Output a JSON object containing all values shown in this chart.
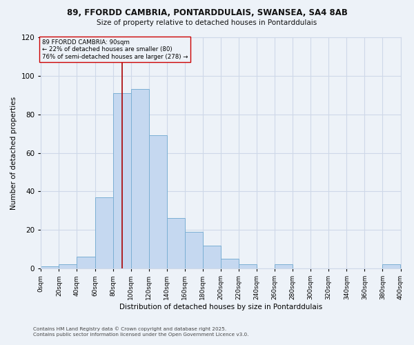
{
  "title_line1": "89, FFORDD CAMBRIA, PONTARDDULAIS, SWANSEA, SA4 8AB",
  "title_line2": "Size of property relative to detached houses in Pontarddulais",
  "xlabel": "Distribution of detached houses by size in Pontarddulais",
  "ylabel": "Number of detached properties",
  "bar_edges": [
    0,
    20,
    40,
    60,
    80,
    100,
    120,
    140,
    160,
    180,
    200,
    220,
    240,
    260,
    280,
    300,
    320,
    340,
    360,
    380
  ],
  "bar_heights": [
    1,
    2,
    6,
    37,
    91,
    93,
    69,
    26,
    19,
    12,
    5,
    2,
    0,
    2,
    0,
    0,
    0,
    0,
    0,
    2
  ],
  "bar_color": "#c5d8f0",
  "bar_edgecolor": "#7bafd4",
  "grid_color": "#ced8e8",
  "bg_color": "#edf2f8",
  "property_size": 90,
  "vline_color": "#aa0000",
  "annotation_box_edgecolor": "#cc0000",
  "annotation_text_line1": "89 FFORDD CAMBRIA: 90sqm",
  "annotation_text_line2": "← 22% of detached houses are smaller (80)",
  "annotation_text_line3": "76% of semi-detached houses are larger (278) →",
  "ylim": [
    0,
    120
  ],
  "yticks": [
    0,
    20,
    40,
    60,
    80,
    100,
    120
  ],
  "tick_labels": [
    "0sqm",
    "20sqm",
    "40sqm",
    "60sqm",
    "80sqm",
    "100sqm",
    "120sqm",
    "140sqm",
    "160sqm",
    "180sqm",
    "200sqm",
    "220sqm",
    "240sqm",
    "260sqm",
    "280sqm",
    "300sqm",
    "320sqm",
    "340sqm",
    "360sqm",
    "380sqm",
    "400sqm"
  ],
  "footer_line1": "Contains HM Land Registry data © Crown copyright and database right 2025.",
  "footer_line2": "Contains public sector information licensed under the Open Government Licence v3.0."
}
